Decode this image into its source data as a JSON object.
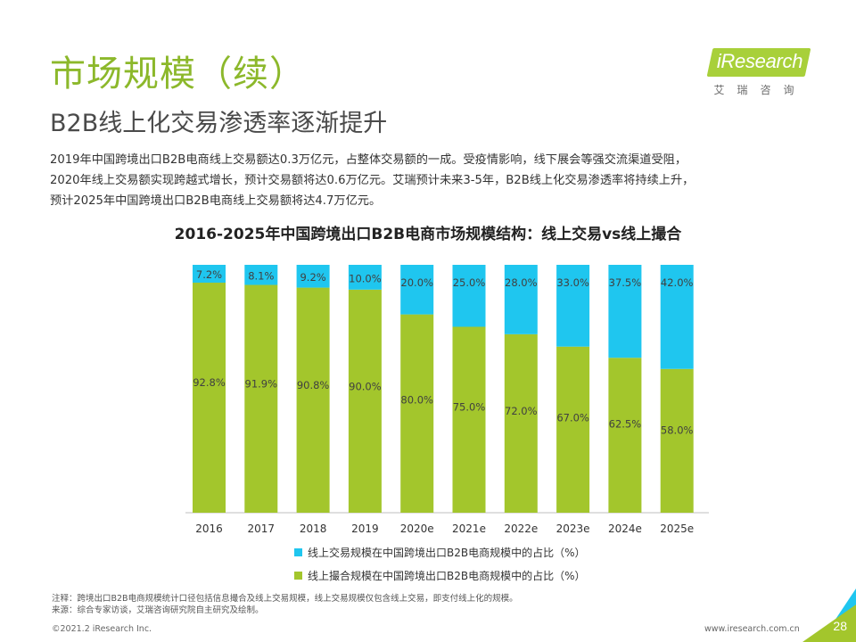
{
  "header": {
    "title": "市场规模（续）",
    "subtitle": "B2B线上化交易渗透率逐渐提升"
  },
  "logo": {
    "brand": "iResearch",
    "cn": "艾瑞咨询"
  },
  "paragraph": {
    "lines": [
      "2019年中国跨境出口B2B电商线上交易额达0.3万亿元，占整体交易额的一成。受疫情影响，线下展会等强交流渠道受阻，",
      "2020年线上交易额实现跨越式增长，预计交易额将达0.6万亿元。艾瑞预计未来3-5年，B2B线上化交易渗透率将持续上升，",
      "预计2025年中国跨境出口B2B电商线上交易额将达4.7万亿元。"
    ]
  },
  "chart_data": {
    "type": "bar",
    "stacked": true,
    "title": "2016-2025年中国跨境出口B2B电商市场规模结构：线上交易vs线上撮合",
    "categories": [
      "2016",
      "2017",
      "2018",
      "2019",
      "2020e",
      "2021e",
      "2022e",
      "2023e",
      "2024e",
      "2025e"
    ],
    "series": [
      {
        "name": "线上撮合规模在中国跨境出口B2B电商规模中的占比（%）",
        "color": "#a3c62c",
        "values": [
          92.8,
          91.9,
          90.8,
          90.0,
          80.0,
          75.0,
          72.0,
          67.0,
          62.5,
          58.0
        ],
        "labels": [
          "92.8%",
          "91.9%",
          "90.8%",
          "90.0%",
          "80.0%",
          "75.0%",
          "72.0%",
          "67.0%",
          "62.5%",
          "58.0%"
        ]
      },
      {
        "name": "线上交易规模在中国跨境出口B2B电商规模中的占比（%）",
        "color": "#1fc6ef",
        "values": [
          7.2,
          8.1,
          9.2,
          10.0,
          20.0,
          25.0,
          28.0,
          33.0,
          37.5,
          42.0
        ],
        "labels": [
          "7.2%",
          "8.1%",
          "9.2%",
          "10.0%",
          "20.0%",
          "25.0%",
          "28.0%",
          "33.0%",
          "37.5%",
          "42.0%"
        ]
      }
    ],
    "ylim": [
      0,
      100
    ],
    "xlabel": "",
    "ylabel": "",
    "legend_position": "bottom",
    "grid": false
  },
  "legend": {
    "items": [
      {
        "label": "线上交易规模在中国跨境出口B2B电商规模中的占比（%）",
        "color": "#1fc6ef"
      },
      {
        "label": "线上撮合规模在中国跨境出口B2B电商规模中的占比（%）",
        "color": "#a3c62c"
      }
    ]
  },
  "footnote": {
    "note": "注释：跨境出口B2B电商规模统计口径包括信息撮合及线上交易规模，线上交易规模仅包含线上交易，即支付线上化的规模。",
    "source": "来源：综合专家访谈，艾瑞咨询研究院自主研究及绘制。"
  },
  "footer": {
    "copyright": "©2021.2 iResearch Inc.",
    "website": "www.iresearch.com.cn",
    "page_number": "28"
  },
  "colors": {
    "accent_green": "#8cb82b",
    "corner_green": "#a3c62c",
    "corner_blue": "#1fc6ef"
  }
}
